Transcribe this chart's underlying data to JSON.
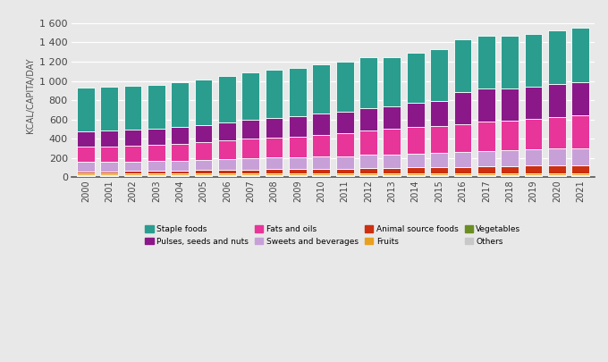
{
  "years": [
    2000,
    2001,
    2002,
    2003,
    2004,
    2005,
    2006,
    2007,
    2008,
    2009,
    2010,
    2011,
    2012,
    2013,
    2014,
    2015,
    2016,
    2017,
    2018,
    2019,
    2020,
    2021
  ],
  "categories": [
    "Others",
    "Vegetables",
    "Fruits",
    "Animal source foods",
    "Sweets and beverages",
    "Fats and oils",
    "Pulses, seeds and nuts",
    "Staple foods"
  ],
  "colors": [
    "#c8c8c8",
    "#6b8e23",
    "#e8a020",
    "#cc3010",
    "#c8a0d8",
    "#e8359a",
    "#8b1888",
    "#2a9d8f"
  ],
  "data": {
    "Others": [
      12,
      12,
      12,
      13,
      13,
      13,
      13,
      13,
      14,
      14,
      14,
      14,
      15,
      15,
      15,
      15,
      15,
      15,
      15,
      15,
      15,
      15
    ],
    "Vegetables": [
      8,
      8,
      8,
      8,
      8,
      8,
      8,
      9,
      9,
      9,
      9,
      9,
      9,
      9,
      9,
      9,
      9,
      9,
      9,
      9,
      9,
      9
    ],
    "Fruits": [
      18,
      18,
      18,
      18,
      18,
      18,
      18,
      18,
      18,
      18,
      18,
      18,
      18,
      18,
      18,
      18,
      18,
      18,
      18,
      18,
      18,
      18
    ],
    "Animal source foods": [
      25,
      25,
      28,
      28,
      30,
      35,
      38,
      42,
      45,
      45,
      48,
      50,
      55,
      58,
      60,
      65,
      68,
      72,
      75,
      78,
      82,
      85
    ],
    "Sweets and beverages": [
      95,
      97,
      100,
      103,
      105,
      108,
      112,
      115,
      118,
      122,
      126,
      130,
      135,
      138,
      142,
      147,
      152,
      158,
      162,
      167,
      172,
      177
    ],
    "Fats and oils": [
      160,
      163,
      165,
      168,
      175,
      185,
      195,
      205,
      210,
      216,
      228,
      240,
      255,
      262,
      275,
      282,
      290,
      305,
      312,
      320,
      330,
      337
    ],
    "Pulses, seeds and nuts": [
      155,
      160,
      163,
      167,
      170,
      175,
      185,
      195,
      200,
      208,
      215,
      220,
      235,
      240,
      250,
      258,
      335,
      340,
      335,
      332,
      345,
      345
    ],
    "Staple foods": [
      460,
      455,
      455,
      455,
      465,
      475,
      480,
      490,
      500,
      503,
      510,
      515,
      520,
      510,
      525,
      535,
      545,
      550,
      545,
      545,
      555,
      565
    ]
  },
  "ylabel": "KCAL/CAPITA/DAY",
  "ylim": [
    0,
    1700
  ],
  "yticks": [
    0,
    200,
    400,
    600,
    800,
    1000,
    1200,
    1400,
    1600
  ],
  "ytick_labels": [
    "0",
    "200",
    "400",
    "600",
    "800",
    "1 000",
    "1 200",
    "1 400",
    "1 600"
  ],
  "background_color": "#e8e8e8",
  "legend_order": [
    "Staple foods",
    "Pulses, seeds and nuts",
    "Fats and oils",
    "Sweets and beverages",
    "Animal source foods",
    "Fruits",
    "Vegetables",
    "Others"
  ]
}
